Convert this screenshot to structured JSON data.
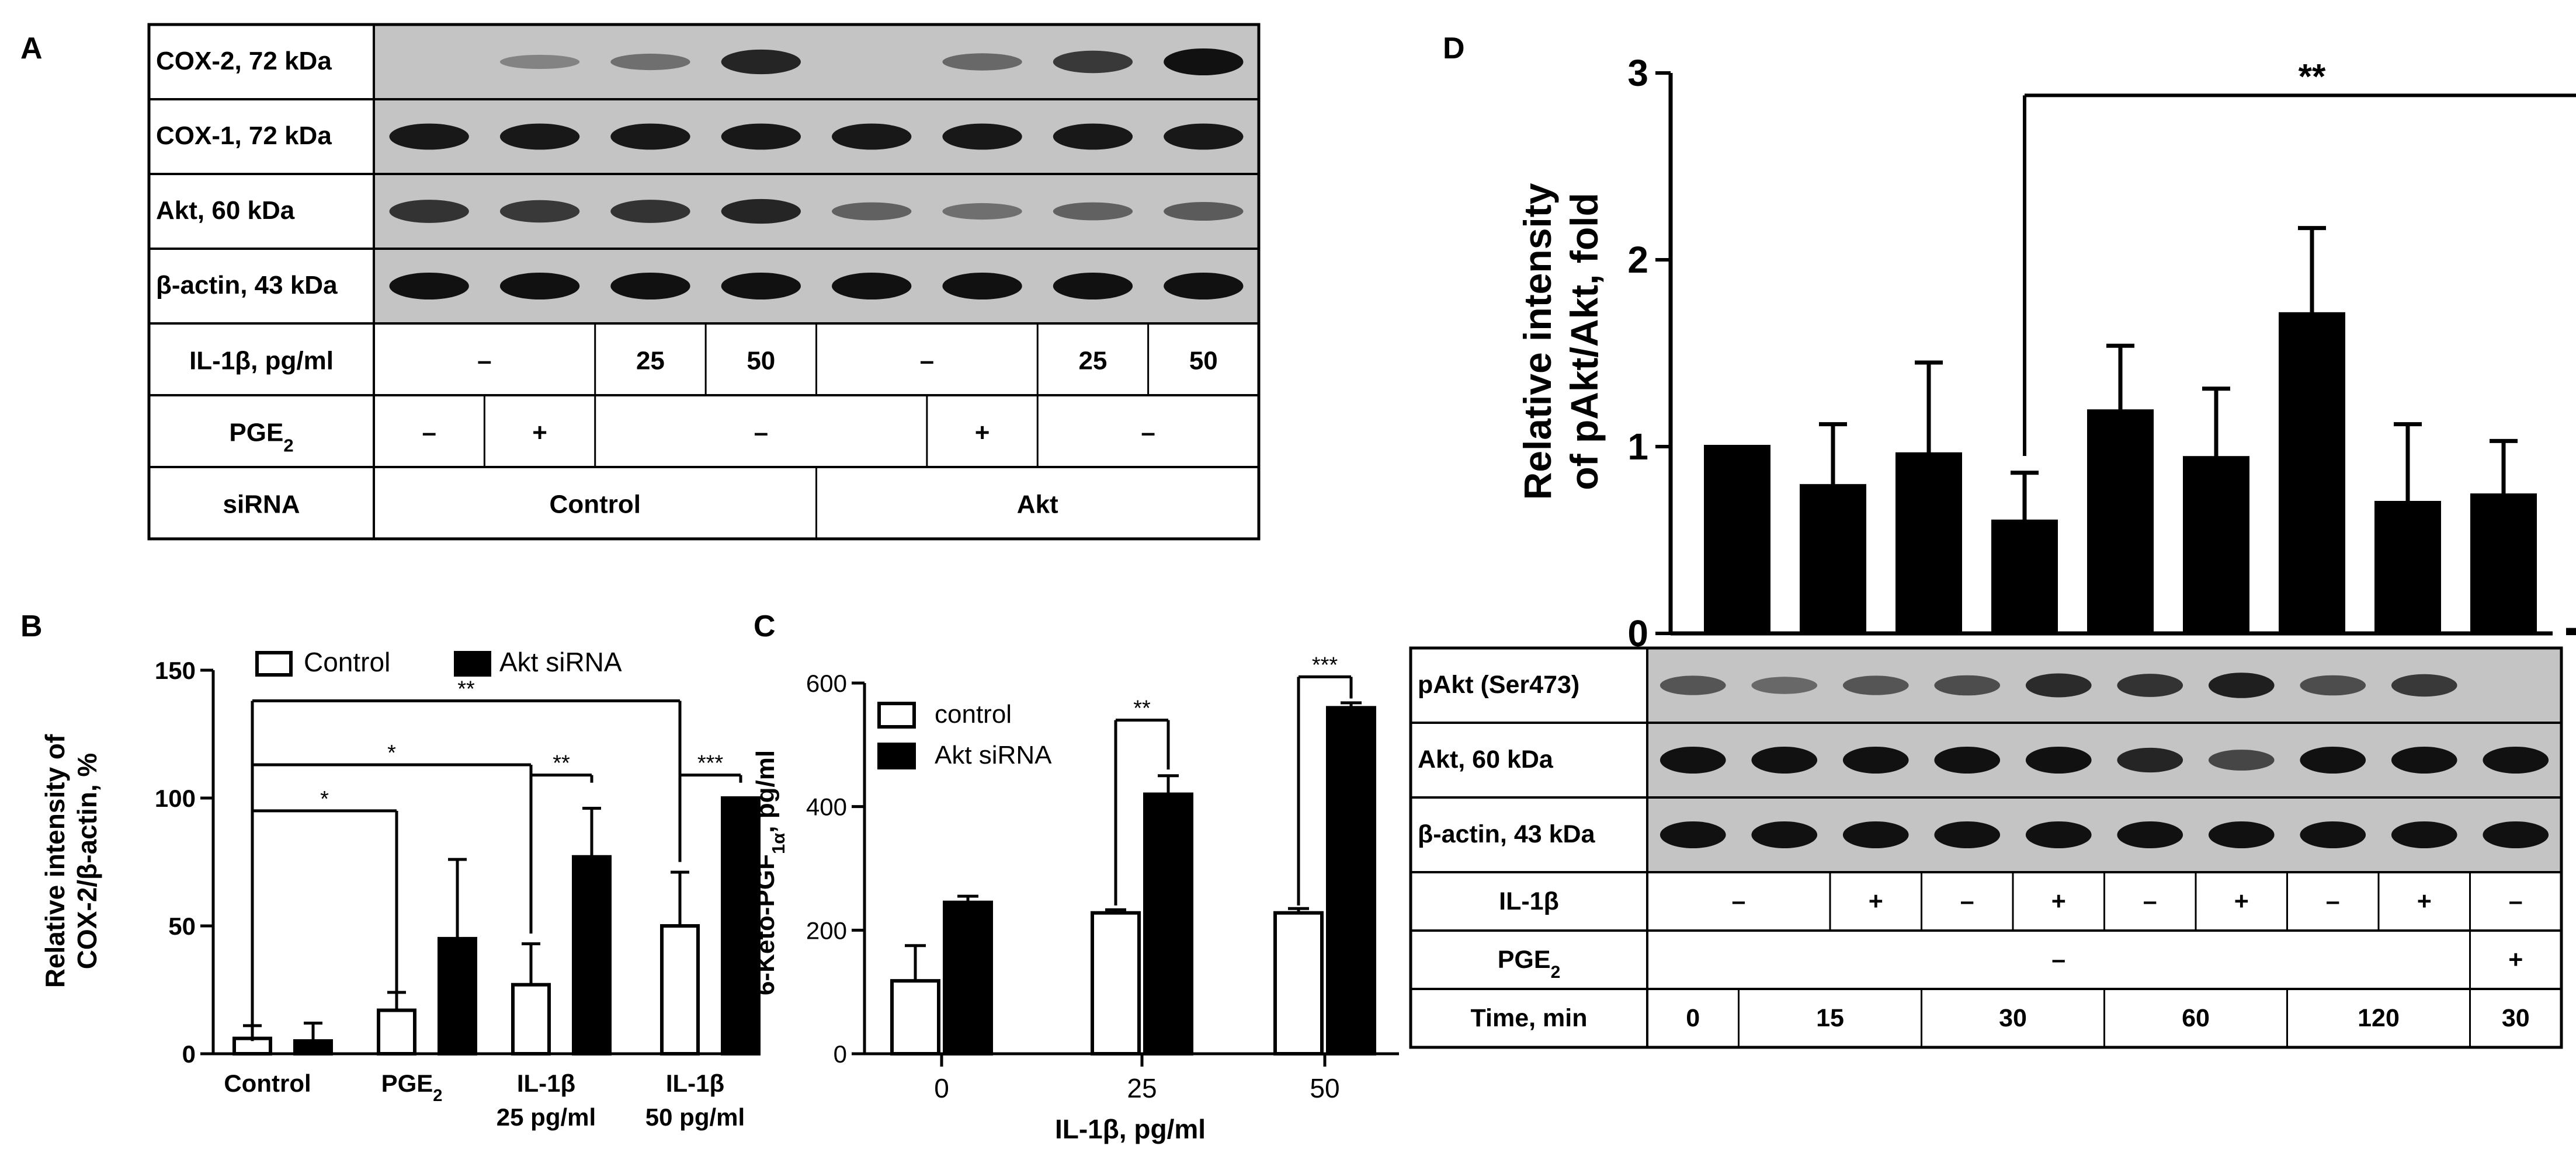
{
  "panel_labels": [
    "A",
    "B",
    "C",
    "D"
  ],
  "panel_a": {
    "blots": [
      {
        "label": "COX-2, 72 kDa",
        "intensities": [
          0.0,
          0.15,
          0.3,
          0.85,
          0.0,
          0.35,
          0.7,
          1.0
        ]
      },
      {
        "label": "COX-1, 72 kDa",
        "intensities": [
          0.95,
          0.95,
          0.95,
          0.95,
          0.95,
          0.95,
          0.95,
          0.95
        ]
      },
      {
        "label": "Akt, 60 kDa",
        "intensities": [
          0.75,
          0.7,
          0.75,
          0.85,
          0.4,
          0.3,
          0.4,
          0.45
        ]
      },
      {
        "label": "β-actin, 43 kDa",
        "intensities": [
          1.0,
          1.0,
          1.0,
          1.0,
          1.0,
          1.0,
          1.0,
          1.0
        ]
      }
    ],
    "rows": [
      {
        "label": "IL-1β, pg/ml",
        "cells": [
          {
            "text": "–",
            "span": 2
          },
          {
            "text": "25",
            "span": 1
          },
          {
            "text": "50",
            "span": 1
          },
          {
            "text": "–",
            "span": 2
          },
          {
            "text": "25",
            "span": 1
          },
          {
            "text": "50",
            "span": 1
          }
        ]
      },
      {
        "label": "PGE",
        "label_sub": "2",
        "cells": [
          {
            "text": "–",
            "span": 1
          },
          {
            "text": "+",
            "span": 1
          },
          {
            "text": "–",
            "span": 3
          },
          {
            "text": "+",
            "span": 1
          },
          {
            "text": "–",
            "span": 2
          }
        ]
      },
      {
        "label": "siRNA",
        "cells": [
          {
            "text": "Control",
            "span": 4
          },
          {
            "text": "Akt",
            "span": 4
          }
        ]
      }
    ]
  },
  "panel_d_blot": {
    "blots": [
      {
        "label": "pAkt (Ser473)",
        "intensities": [
          0.5,
          0.35,
          0.5,
          0.55,
          0.8,
          0.75,
          0.9,
          0.55,
          0.7,
          0.0
        ]
      },
      {
        "label": "Akt, 60 kDa",
        "intensities": [
          1.0,
          1.0,
          1.0,
          1.0,
          1.0,
          0.85,
          0.6,
          1.0,
          1.0,
          1.0
        ]
      },
      {
        "label": "β-actin, 43 kDa",
        "intensities": [
          1.0,
          1.0,
          1.0,
          1.0,
          1.0,
          1.0,
          1.0,
          1.0,
          1.0,
          1.0
        ]
      }
    ],
    "rows": [
      {
        "label": "IL-1β",
        "cells": [
          {
            "text": "–",
            "span": 2
          },
          {
            "text": "+",
            "span": 1
          },
          {
            "text": "–",
            "span": 1
          },
          {
            "text": "+",
            "span": 1
          },
          {
            "text": "–",
            "span": 1
          },
          {
            "text": "+",
            "span": 1
          },
          {
            "text": "–",
            "span": 1
          },
          {
            "text": "+",
            "span": 1
          },
          {
            "text": "–",
            "span": 1
          }
        ]
      },
      {
        "label": "PGE",
        "label_sub": "2",
        "cells": [
          {
            "text": "–",
            "span": 9
          },
          {
            "text": "+",
            "span": 1
          }
        ]
      },
      {
        "label": "Time, min",
        "cells": [
          {
            "text": "0",
            "span": 1
          },
          {
            "text": "15",
            "span": 2
          },
          {
            "text": "30",
            "span": 2
          },
          {
            "text": "60",
            "span": 2
          },
          {
            "text": "120",
            "span": 2
          },
          {
            "text": "30",
            "span": 1
          }
        ]
      }
    ]
  },
  "chart_data": [
    {
      "panel": "B",
      "type": "bar",
      "ylabel_line1": "Relative intensity of",
      "ylabel_line2": "COX-2/β-actin, %",
      "ylim": [
        0,
        150
      ],
      "yticks": [
        0,
        50,
        100,
        150
      ],
      "categories": [
        {
          "line1": "Control",
          "line2": "",
          "sub": ""
        },
        {
          "line1": "PGE",
          "line2": "",
          "sub": "2"
        },
        {
          "line1": "IL-1β",
          "line2": "25 pg/ml",
          "sub": ""
        },
        {
          "line1": "IL-1β",
          "line2": "50 pg/ml",
          "sub": ""
        }
      ],
      "series": [
        {
          "name": "Control",
          "fill": "#ffffff",
          "values": [
            6,
            17,
            27,
            50
          ],
          "errors": [
            5,
            7,
            16,
            21
          ]
        },
        {
          "name": "Akt siRNA",
          "fill": "#000000",
          "values": [
            5,
            45,
            77,
            100
          ],
          "errors": [
            7,
            31,
            19,
            0
          ]
        }
      ],
      "significance": [
        {
          "from": [
            0,
            0
          ],
          "to": [
            1,
            0
          ],
          "y": 95,
          "drop_from": 5,
          "drop_to": 22,
          "label": "*"
        },
        {
          "from": [
            0,
            0
          ],
          "to": [
            2,
            0
          ],
          "y": 113,
          "drop_from": 5,
          "drop_to": 47,
          "label": "*"
        },
        {
          "from": [
            0,
            0
          ],
          "to": [
            3,
            0
          ],
          "y": 138,
          "drop_from": 5,
          "drop_to": 75,
          "label": "**"
        },
        {
          "from": [
            2,
            0
          ],
          "to": [
            2,
            1
          ],
          "y": 109,
          "drop_from": 106,
          "drop_to": 106,
          "label": "**"
        },
        {
          "from": [
            3,
            0
          ],
          "to": [
            3,
            1
          ],
          "y": 109,
          "drop_from": 106,
          "drop_to": 106,
          "label": "***"
        }
      ]
    },
    {
      "panel": "C",
      "type": "bar",
      "ylabel": "6-Keto-PGF",
      "ylabel_sub": "1α",
      "ylabel_unit": ", pg/ml",
      "xlabel": "IL-1β, pg/ml",
      "ylim": [
        0,
        600
      ],
      "yticks": [
        0,
        200,
        400,
        600
      ],
      "categories": [
        "0",
        "25",
        "50"
      ],
      "series": [
        {
          "name": "control",
          "fill": "#ffffff",
          "values": [
            118,
            228,
            228
          ],
          "errors": [
            57,
            5,
            7
          ]
        },
        {
          "name": "Akt siRNA",
          "fill": "#000000",
          "values": [
            245,
            420,
            560
          ],
          "errors": [
            10,
            30,
            8
          ]
        }
      ],
      "significance": [
        {
          "group": 1,
          "y": 540,
          "drop_from": 240,
          "drop_to": 460,
          "label": "**"
        },
        {
          "group": 2,
          "y": 610,
          "drop_from": 240,
          "drop_to": 575,
          "label": "***"
        }
      ]
    },
    {
      "panel": "D",
      "type": "bar",
      "ylabel_line1": "Relative intensity",
      "ylabel_line2": "of pAkt/Akt, fold",
      "ylim": [
        0,
        3
      ],
      "yticks": [
        0,
        1,
        2,
        3
      ],
      "series": [
        {
          "name": "",
          "fill": "#000000",
          "values": [
            1.0,
            0.79,
            0.96,
            0.6,
            1.19,
            0.94,
            1.71,
            0.7,
            0.74,
            0.02
          ],
          "errors": [
            0,
            0.33,
            0.49,
            0.26,
            0.35,
            0.37,
            0.46,
            0.42,
            0.29,
            0.01
          ]
        }
      ],
      "significance": [
        {
          "from": 3,
          "to": 9,
          "y": 2.88,
          "drop_from": 0.95,
          "drop_to": 0.12,
          "label": "**"
        }
      ]
    }
  ]
}
